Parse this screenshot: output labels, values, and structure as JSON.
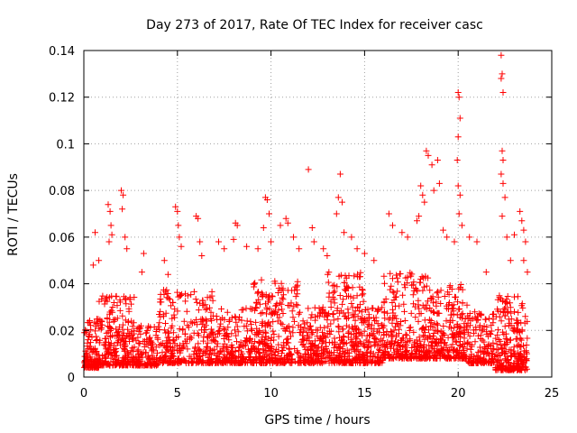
{
  "chart_data": {
    "type": "scatter",
    "title": "Day 273 of 2017, Rate Of TEC Index for receiver casc",
    "xlabel": "GPS time / hours",
    "ylabel": "ROTI / TECUs",
    "xlim": [
      0,
      25
    ],
    "ylim": [
      0,
      0.14
    ],
    "x_ticks": [
      0,
      5,
      10,
      15,
      20,
      25
    ],
    "x_tick_labels": [
      "0",
      "5",
      "10",
      "15",
      "20",
      "25"
    ],
    "y_ticks": [
      0,
      0.02,
      0.04,
      0.06,
      0.08,
      0.1,
      0.12,
      0.14
    ],
    "y_tick_labels": [
      "0",
      "0.02",
      "0.04",
      "0.06",
      "0.08",
      "0.1",
      "0.12",
      "0.14"
    ],
    "grid": true,
    "marker": "+",
    "marker_color": "#ff0000",
    "series": [
      {
        "name": "ROTI",
        "points": [
          [
            1.3,
            0.074
          ],
          [
            1.4,
            0.071
          ],
          [
            1.45,
            0.065
          ],
          [
            1.5,
            0.061
          ],
          [
            1.35,
            0.058
          ],
          [
            0.6,
            0.062
          ],
          [
            0.5,
            0.048
          ],
          [
            0.8,
            0.05
          ],
          [
            2.0,
            0.08
          ],
          [
            2.1,
            0.078
          ],
          [
            2.05,
            0.072
          ],
          [
            2.2,
            0.06
          ],
          [
            2.3,
            0.055
          ],
          [
            3.2,
            0.053
          ],
          [
            3.1,
            0.045
          ],
          [
            4.3,
            0.05
          ],
          [
            4.5,
            0.044
          ],
          [
            4.9,
            0.073
          ],
          [
            5.0,
            0.071
          ],
          [
            5.05,
            0.065
          ],
          [
            5.1,
            0.06
          ],
          [
            5.2,
            0.056
          ],
          [
            6.0,
            0.069
          ],
          [
            6.1,
            0.068
          ],
          [
            6.2,
            0.058
          ],
          [
            6.3,
            0.052
          ],
          [
            7.2,
            0.058
          ],
          [
            7.5,
            0.055
          ],
          [
            8.1,
            0.066
          ],
          [
            8.2,
            0.065
          ],
          [
            8.0,
            0.059
          ],
          [
            8.7,
            0.056
          ],
          [
            9.3,
            0.055
          ],
          [
            9.7,
            0.077
          ],
          [
            9.8,
            0.076
          ],
          [
            9.9,
            0.07
          ],
          [
            9.6,
            0.064
          ],
          [
            10.0,
            0.058
          ],
          [
            10.5,
            0.065
          ],
          [
            10.8,
            0.068
          ],
          [
            10.9,
            0.066
          ],
          [
            11.2,
            0.06
          ],
          [
            11.5,
            0.055
          ],
          [
            12.0,
            0.089
          ],
          [
            12.2,
            0.064
          ],
          [
            12.3,
            0.058
          ],
          [
            12.8,
            0.055
          ],
          [
            13.0,
            0.052
          ],
          [
            13.7,
            0.087
          ],
          [
            13.6,
            0.077
          ],
          [
            13.8,
            0.075
          ],
          [
            13.5,
            0.07
          ],
          [
            13.9,
            0.062
          ],
          [
            14.3,
            0.06
          ],
          [
            14.6,
            0.055
          ],
          [
            15.0,
            0.053
          ],
          [
            15.5,
            0.05
          ],
          [
            16.3,
            0.07
          ],
          [
            16.5,
            0.065
          ],
          [
            17.0,
            0.062
          ],
          [
            17.3,
            0.06
          ],
          [
            17.8,
            0.067
          ],
          [
            17.9,
            0.069
          ],
          [
            18.0,
            0.082
          ],
          [
            18.1,
            0.078
          ],
          [
            18.3,
            0.097
          ],
          [
            18.4,
            0.095
          ],
          [
            18.6,
            0.091
          ],
          [
            18.9,
            0.093
          ],
          [
            19.0,
            0.083
          ],
          [
            18.7,
            0.08
          ],
          [
            18.2,
            0.075
          ],
          [
            19.2,
            0.063
          ],
          [
            19.4,
            0.06
          ],
          [
            19.8,
            0.058
          ],
          [
            20.0,
            0.122
          ],
          [
            20.05,
            0.12
          ],
          [
            20.1,
            0.111
          ],
          [
            20.0,
            0.103
          ],
          [
            19.95,
            0.093
          ],
          [
            20.0,
            0.082
          ],
          [
            20.1,
            0.078
          ],
          [
            20.05,
            0.07
          ],
          [
            20.2,
            0.065
          ],
          [
            20.6,
            0.06
          ],
          [
            21.0,
            0.058
          ],
          [
            21.5,
            0.045
          ],
          [
            21.9,
            0.027
          ],
          [
            22.3,
            0.138
          ],
          [
            22.35,
            0.13
          ],
          [
            22.3,
            0.128
          ],
          [
            22.4,
            0.122
          ],
          [
            22.35,
            0.097
          ],
          [
            22.4,
            0.093
          ],
          [
            22.3,
            0.087
          ],
          [
            22.4,
            0.083
          ],
          [
            22.5,
            0.077
          ],
          [
            22.35,
            0.069
          ],
          [
            22.6,
            0.06
          ],
          [
            22.8,
            0.05
          ],
          [
            23.0,
            0.061
          ],
          [
            23.3,
            0.071
          ],
          [
            23.4,
            0.067
          ],
          [
            23.5,
            0.063
          ],
          [
            23.6,
            0.058
          ],
          [
            23.5,
            0.05
          ],
          [
            23.7,
            0.045
          ]
        ],
        "dense_bands": [
          {
            "from": 0.0,
            "to": 0.8,
            "base": 0.004,
            "top": 0.025,
            "count": 120
          },
          {
            "from": 0.8,
            "to": 2.8,
            "base": 0.005,
            "top": 0.035,
            "count": 260
          },
          {
            "from": 2.8,
            "to": 4.0,
            "base": 0.005,
            "top": 0.022,
            "count": 120
          },
          {
            "from": 4.0,
            "to": 7.0,
            "base": 0.006,
            "top": 0.038,
            "count": 300
          },
          {
            "from": 7.0,
            "to": 9.0,
            "base": 0.006,
            "top": 0.03,
            "count": 200
          },
          {
            "from": 9.0,
            "to": 11.5,
            "base": 0.006,
            "top": 0.042,
            "count": 300
          },
          {
            "from": 11.5,
            "to": 13.0,
            "base": 0.006,
            "top": 0.03,
            "count": 170
          },
          {
            "from": 13.0,
            "to": 15.0,
            "base": 0.006,
            "top": 0.045,
            "count": 280
          },
          {
            "from": 15.0,
            "to": 16.0,
            "base": 0.006,
            "top": 0.03,
            "count": 120
          },
          {
            "from": 16.0,
            "to": 18.5,
            "base": 0.008,
            "top": 0.045,
            "count": 300
          },
          {
            "from": 18.5,
            "to": 20.5,
            "base": 0.008,
            "top": 0.04,
            "count": 240
          },
          {
            "from": 20.5,
            "to": 22.0,
            "base": 0.006,
            "top": 0.028,
            "count": 150
          },
          {
            "from": 22.0,
            "to": 23.7,
            "base": 0.003,
            "top": 0.035,
            "count": 260
          }
        ]
      }
    ]
  }
}
